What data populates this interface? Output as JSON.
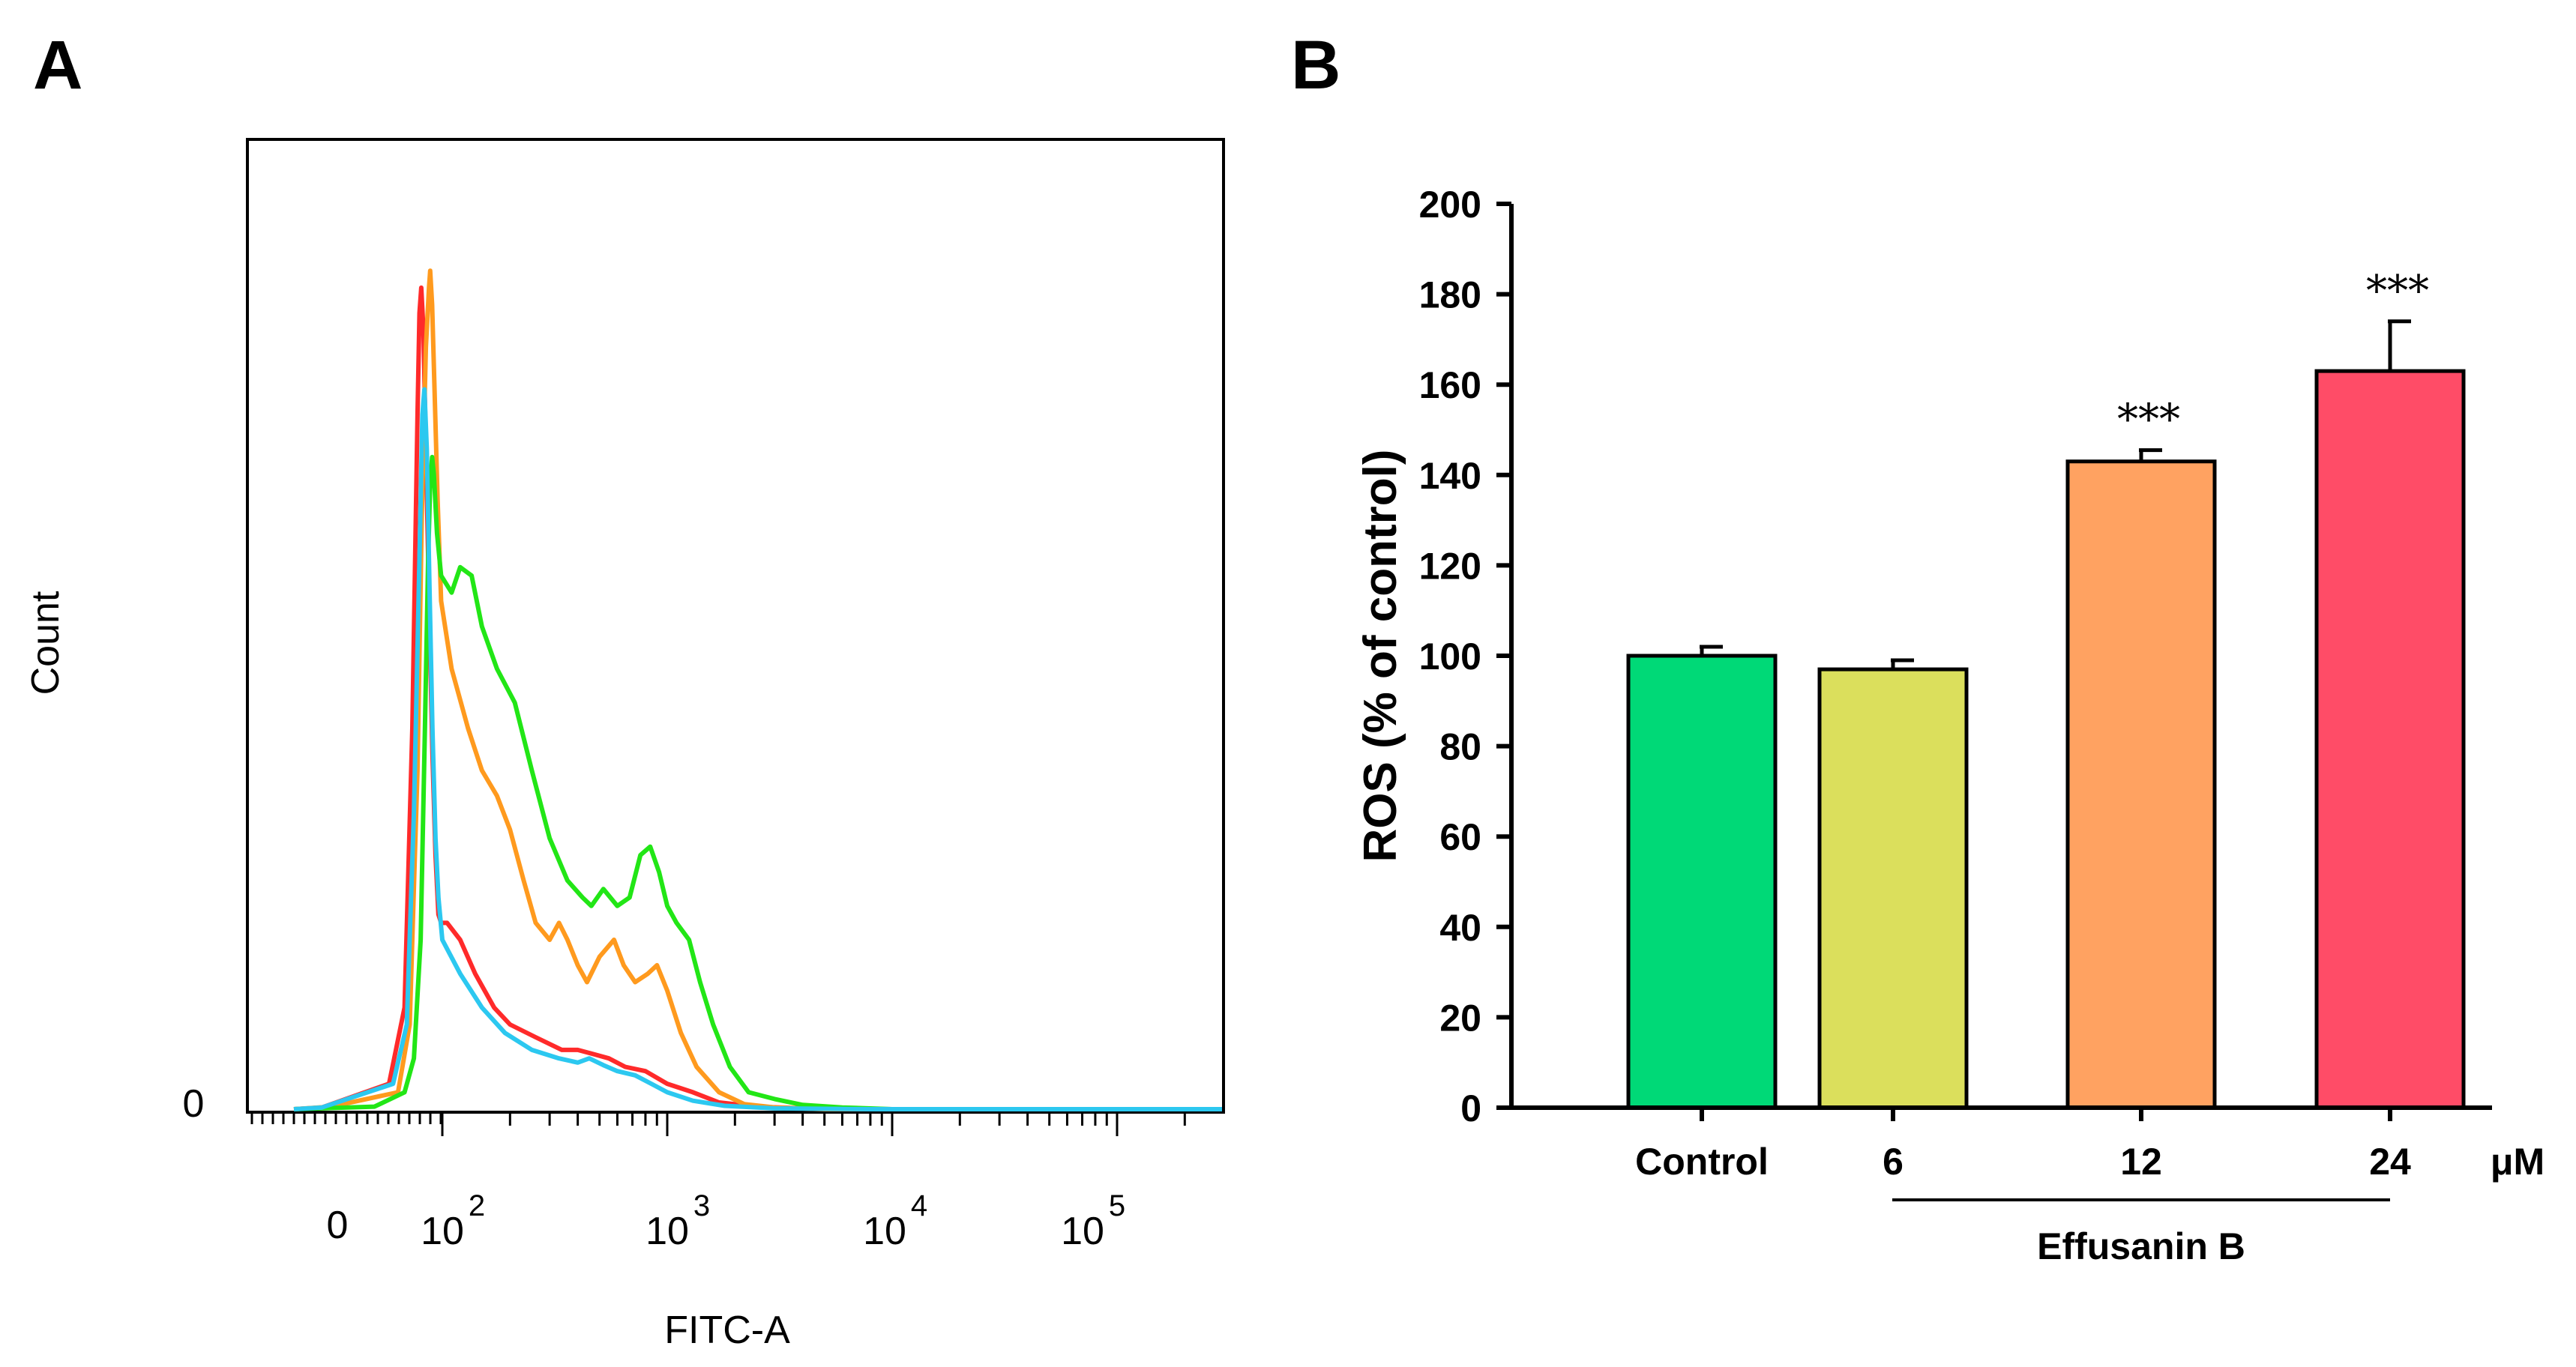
{
  "panels": {
    "a": "A",
    "b": "B"
  },
  "chart_data": [
    {
      "type": "line",
      "xlabel": "FITC-A",
      "ylabel": "Count",
      "x_scale": "log",
      "xlim": [
        -30,
        500000
      ],
      "x_ticks": [
        {
          "value": "0",
          "base": "",
          "exp": ""
        },
        {
          "value": "",
          "base": "10",
          "exp": "2"
        },
        {
          "value": "",
          "base": "10",
          "exp": "3"
        },
        {
          "value": "",
          "base": "10",
          "exp": "4"
        },
        {
          "value": "",
          "base": "10",
          "exp": "5"
        }
      ],
      "y_ticks": [
        "0"
      ],
      "grid": false,
      "series": [
        {
          "color": "#ff2a2a",
          "points": [
            [
              -20,
              0
            ],
            [
              -5,
              0.002
            ],
            [
              10,
              0.03
            ],
            [
              20,
              0.12
            ],
            [
              28,
              0.45
            ],
            [
              35,
              0.82
            ],
            [
              38,
              0.94
            ],
            [
              41,
              0.97
            ],
            [
              45,
              0.92
            ],
            [
              50,
              0.78
            ],
            [
              58,
              0.58
            ],
            [
              66,
              0.42
            ],
            [
              75,
              0.3
            ],
            [
              85,
              0.23
            ],
            [
              95,
              0.22
            ],
            [
              105,
              0.22
            ],
            [
              120,
              0.2
            ],
            [
              140,
              0.16
            ],
            [
              170,
              0.12
            ],
            [
              200,
              0.1
            ],
            [
              260,
              0.085
            ],
            [
              340,
              0.07
            ],
            [
              400,
              0.07
            ],
            [
              470,
              0.065
            ],
            [
              550,
              0.06
            ],
            [
              650,
              0.05
            ],
            [
              800,
              0.045
            ],
            [
              1000,
              0.03
            ],
            [
              1300,
              0.02
            ],
            [
              1700,
              0.008
            ],
            [
              2500,
              0.003
            ],
            [
              4000,
              0.001
            ],
            [
              10000,
              0
            ],
            [
              450000,
              0
            ]
          ]
        },
        {
          "color": "#ff9a1e",
          "points": [
            [
              -20,
              0
            ],
            [
              0,
              0.003
            ],
            [
              15,
              0.02
            ],
            [
              25,
              0.1
            ],
            [
              35,
              0.4
            ],
            [
              42,
              0.7
            ],
            [
              50,
              0.9
            ],
            [
              57,
              0.97
            ],
            [
              60,
              0.99
            ],
            [
              65,
              0.95
            ],
            [
              72,
              0.85
            ],
            [
              82,
              0.72
            ],
            [
              95,
              0.6
            ],
            [
              110,
              0.52
            ],
            [
              130,
              0.45
            ],
            [
              150,
              0.4
            ],
            [
              175,
              0.37
            ],
            [
              200,
              0.33
            ],
            [
              230,
              0.27
            ],
            [
              260,
              0.22
            ],
            [
              300,
              0.2
            ],
            [
              330,
              0.22
            ],
            [
              360,
              0.2
            ],
            [
              400,
              0.17
            ],
            [
              440,
              0.15
            ],
            [
              500,
              0.18
            ],
            [
              580,
              0.2
            ],
            [
              640,
              0.17
            ],
            [
              720,
              0.15
            ],
            [
              820,
              0.16
            ],
            [
              900,
              0.17
            ],
            [
              1000,
              0.14
            ],
            [
              1150,
              0.09
            ],
            [
              1350,
              0.05
            ],
            [
              1700,
              0.02
            ],
            [
              2200,
              0.006
            ],
            [
              3000,
              0.002
            ],
            [
              5000,
              0
            ],
            [
              450000,
              0
            ]
          ]
        },
        {
          "color": "#22e616",
          "points": [
            [
              -20,
              0
            ],
            [
              5,
              0.003
            ],
            [
              20,
              0.02
            ],
            [
              30,
              0.06
            ],
            [
              40,
              0.2
            ],
            [
              48,
              0.45
            ],
            [
              55,
              0.65
            ],
            [
              60,
              0.74
            ],
            [
              65,
              0.77
            ],
            [
              70,
              0.75
            ],
            [
              80,
              0.68
            ],
            [
              95,
              0.63
            ],
            [
              110,
              0.61
            ],
            [
              120,
              0.64
            ],
            [
              135,
              0.63
            ],
            [
              150,
              0.57
            ],
            [
              175,
              0.52
            ],
            [
              210,
              0.48
            ],
            [
              250,
              0.4
            ],
            [
              300,
              0.32
            ],
            [
              360,
              0.27
            ],
            [
              420,
              0.25
            ],
            [
              460,
              0.24
            ],
            [
              520,
              0.26
            ],
            [
              600,
              0.24
            ],
            [
              680,
              0.25
            ],
            [
              760,
              0.3
            ],
            [
              840,
              0.31
            ],
            [
              920,
              0.28
            ],
            [
              1000,
              0.24
            ],
            [
              1100,
              0.22
            ],
            [
              1250,
              0.2
            ],
            [
              1400,
              0.15
            ],
            [
              1600,
              0.1
            ],
            [
              1900,
              0.05
            ],
            [
              2300,
              0.02
            ],
            [
              3000,
              0.012
            ],
            [
              4000,
              0.005
            ],
            [
              6000,
              0.002
            ],
            [
              10000,
              0
            ],
            [
              450000,
              0
            ]
          ]
        },
        {
          "color": "#2cc8f0",
          "points": [
            [
              -20,
              0
            ],
            [
              -5,
              0.002
            ],
            [
              12,
              0.03
            ],
            [
              22,
              0.1
            ],
            [
              30,
              0.35
            ],
            [
              38,
              0.65
            ],
            [
              43,
              0.82
            ],
            [
              47,
              0.85
            ],
            [
              52,
              0.78
            ],
            [
              58,
              0.62
            ],
            [
              66,
              0.45
            ],
            [
              75,
              0.32
            ],
            [
              85,
              0.25
            ],
            [
              100,
              0.2
            ],
            [
              120,
              0.16
            ],
            [
              150,
              0.12
            ],
            [
              190,
              0.09
            ],
            [
              250,
              0.07
            ],
            [
              330,
              0.06
            ],
            [
              400,
              0.055
            ],
            [
              450,
              0.06
            ],
            [
              520,
              0.052
            ],
            [
              600,
              0.045
            ],
            [
              720,
              0.04
            ],
            [
              850,
              0.03
            ],
            [
              1000,
              0.02
            ],
            [
              1300,
              0.01
            ],
            [
              1800,
              0.004
            ],
            [
              3000,
              0.001
            ],
            [
              8000,
              0
            ],
            [
              450000,
              0
            ]
          ]
        }
      ]
    },
    {
      "type": "bar",
      "ylabel": "ROS (% of control)",
      "ylim": [
        0,
        200
      ],
      "y_ticks": [
        "0",
        "20",
        "40",
        "60",
        "80",
        "100",
        "120",
        "140",
        "160",
        "180",
        "200"
      ],
      "categories": [
        "Control",
        "6",
        "12",
        "24"
      ],
      "values": [
        100,
        97,
        143,
        163
      ],
      "errors": [
        2,
        2,
        2.5,
        11
      ],
      "colors": [
        "#00d977",
        "#dbdf5c",
        "#ffa261",
        "#ff4c67"
      ],
      "significance": [
        "",
        "",
        "***",
        "***"
      ],
      "unit": "μM",
      "group_label": "Effusanin B",
      "grid": false
    }
  ]
}
